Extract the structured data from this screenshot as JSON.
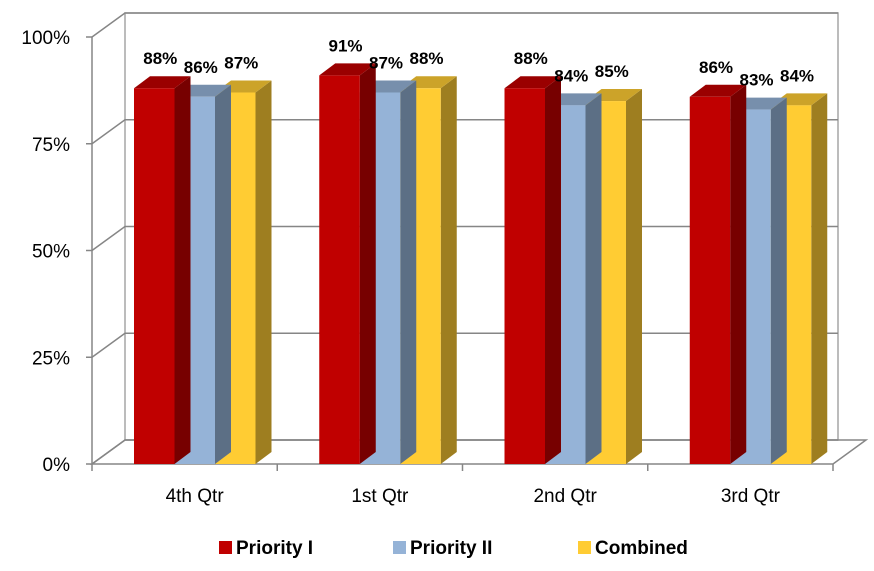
{
  "chart_data": {
    "type": "bar",
    "categories": [
      "4th Qtr",
      "1st Qtr",
      "2nd Qtr",
      "3rd Qtr"
    ],
    "series": [
      {
        "name": "Priority I",
        "values": [
          88,
          91,
          88,
          86
        ],
        "labels": [
          "88%",
          "91%",
          "88%",
          "86%"
        ],
        "color": "#c00000"
      },
      {
        "name": "Priority II",
        "values": [
          86,
          87,
          84,
          83
        ],
        "labels": [
          "86%",
          "87%",
          "84%",
          "83%"
        ],
        "color": "#95b3d7"
      },
      {
        "name": "Combined",
        "values": [
          87,
          88,
          85,
          84
        ],
        "labels": [
          "87%",
          "88%",
          "85%",
          "84%"
        ],
        "color": "#ffcc33"
      }
    ],
    "y_ticks": [
      {
        "value": 0,
        "label": "0%"
      },
      {
        "value": 25,
        "label": "25%"
      },
      {
        "value": 50,
        "label": "50%"
      },
      {
        "value": 75,
        "label": "75%"
      },
      {
        "value": 100,
        "label": "100%"
      }
    ],
    "ylim": [
      0,
      100
    ],
    "grid": true,
    "legend": "bottom",
    "style": "3d-clustered-column"
  }
}
